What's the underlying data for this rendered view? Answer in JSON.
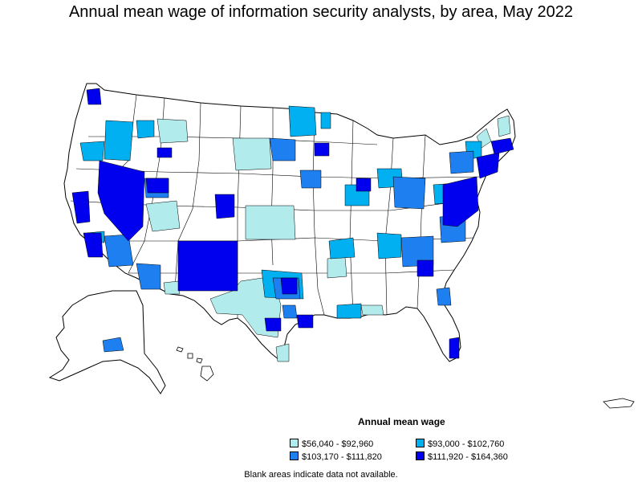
{
  "title": "Annual mean wage of information security analysts, by area, May 2022",
  "legend": {
    "title": "Annual mean wage",
    "items": [
      {
        "label": "$56,040 - $92,960",
        "color": "#b2ebec"
      },
      {
        "label": "$93,000 - $102,760",
        "color": "#00b0f0"
      },
      {
        "label": "$103,170 - $111,820",
        "color": "#1e7ff0"
      },
      {
        "label": "$111,920 - $164,360",
        "color": "#0000ee"
      }
    ]
  },
  "note": "Blank areas indicate data not available.",
  "colors": {
    "no_data": "#ffffff",
    "border": "#000000"
  }
}
